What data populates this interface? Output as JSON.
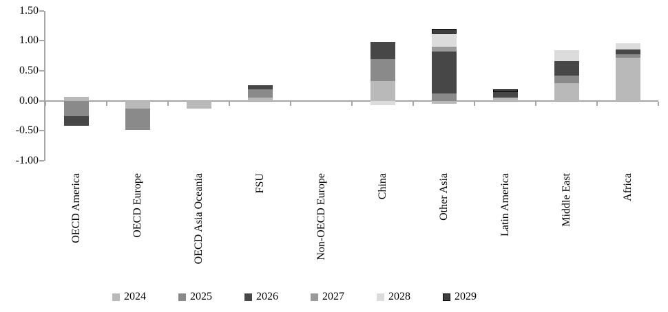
{
  "chart_data": {
    "type": "bar",
    "stacked": true,
    "title": "",
    "xlabel": "",
    "ylabel": "",
    "categories": [
      "OECD America",
      "OECD Europe",
      "OECD Asia Oceania",
      "FSU",
      "Non-OECD Europe",
      "China",
      "Other Asia",
      "Latin America",
      "Middle East",
      "Africa"
    ],
    "series": [
      {
        "name": "2024",
        "color": "#b9b9b9",
        "values": [
          0.06,
          -0.13,
          -0.13,
          0.05,
          0,
          0.33,
          -0.05,
          0.05,
          0.29,
          0.72
        ]
      },
      {
        "name": "2025",
        "color": "#8a8a8a",
        "values": [
          -0.25,
          -0.36,
          0,
          0.14,
          0,
          0.37,
          0.12,
          0,
          0.13,
          0.05
        ]
      },
      {
        "name": "2026",
        "color": "#474747",
        "values": [
          -0.17,
          0,
          0,
          0.07,
          0,
          0.28,
          0.7,
          0.1,
          0.24,
          0.09
        ]
      },
      {
        "name": "2027",
        "color": "#9a9a9a",
        "values": [
          0,
          0,
          0,
          0,
          0,
          0,
          0.08,
          0,
          0,
          0
        ]
      },
      {
        "name": "2028",
        "color": "#dcdcdc",
        "values": [
          0,
          0,
          0,
          0,
          0,
          -0.07,
          0.22,
          0,
          0.18,
          0.1
        ]
      },
      {
        "name": "2029",
        "color": "#3f3f3f",
        "border_color": "#000000",
        "values": [
          0,
          0,
          0,
          0,
          0,
          0,
          0.08,
          0.04,
          0,
          0
        ]
      }
    ],
    "ylim": [
      -1.0,
      1.5
    ],
    "y_ticks": [
      {
        "value": 1.5,
        "label": "1.50"
      },
      {
        "value": 1.0,
        "label": "1.00"
      },
      {
        "value": 0.5,
        "label": "0.50"
      },
      {
        "value": 0.0,
        "label": "0.00"
      },
      {
        "value": -0.5,
        "label": "-0.50"
      },
      {
        "value": -1.0,
        "label": "-1.00"
      }
    ],
    "grid": false,
    "legend_position": "bottom",
    "axis_color": "#a6a6a6"
  }
}
